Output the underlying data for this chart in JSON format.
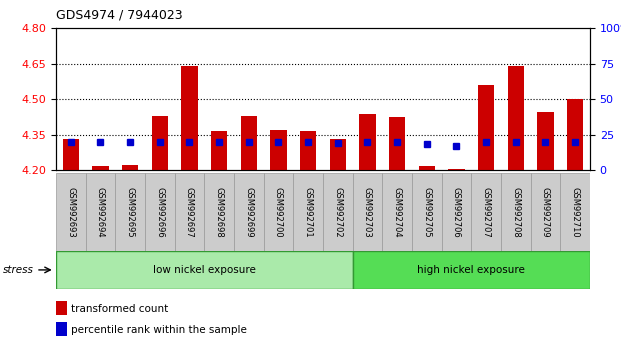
{
  "title": "GDS4974 / 7944023",
  "samples": [
    "GSM992693",
    "GSM992694",
    "GSM992695",
    "GSM992696",
    "GSM992697",
    "GSM992698",
    "GSM992699",
    "GSM992700",
    "GSM992701",
    "GSM992702",
    "GSM992703",
    "GSM992704",
    "GSM992705",
    "GSM992706",
    "GSM992707",
    "GSM992708",
    "GSM992709",
    "GSM992710"
  ],
  "transformed_counts": [
    4.33,
    4.215,
    4.22,
    4.43,
    4.64,
    4.365,
    4.43,
    4.37,
    4.365,
    4.33,
    4.435,
    4.425,
    4.215,
    4.205,
    4.56,
    4.64,
    4.445,
    4.5
  ],
  "percentile_ranks": [
    20,
    20,
    20,
    20,
    20,
    20,
    20,
    20,
    20,
    19,
    20,
    20,
    18,
    17,
    20,
    20,
    20,
    20
  ],
  "ylim_left": [
    4.2,
    4.8
  ],
  "ylim_right": [
    0,
    100
  ],
  "yticks_left": [
    4.2,
    4.35,
    4.5,
    4.65,
    4.8
  ],
  "yticks_right": [
    0,
    25,
    50,
    75,
    100
  ],
  "bar_color": "#cc0000",
  "dot_color": "#0000cc",
  "base_value": 4.2,
  "low_group": 10,
  "low_label": "low nickel exposure",
  "high_label": "high nickel exposure",
  "legend_red": "transformed count",
  "legend_blue": "percentile rank within the sample",
  "stress_label": "stress",
  "group_bg_low": "#aaeaaa",
  "group_bg_high": "#55dd55",
  "bar_width": 0.55,
  "tick_label_bg": "#cccccc",
  "tick_label_edge": "#999999"
}
